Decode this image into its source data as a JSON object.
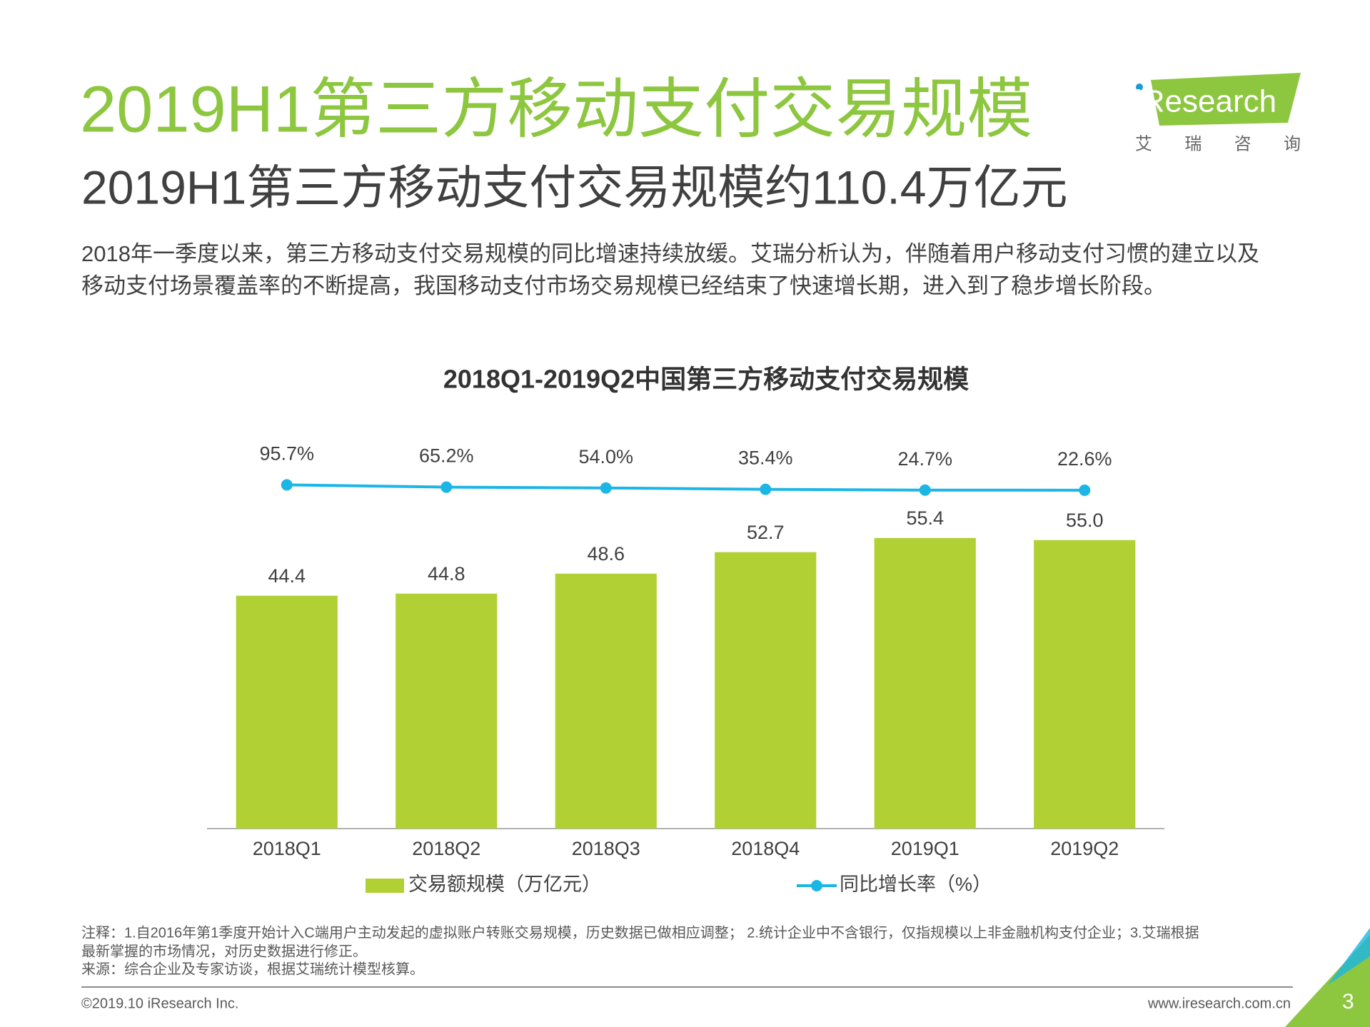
{
  "header": {
    "title": "2019H1第三方移动支付交易规模",
    "subtitle": "2019H1第三方移动支付交易规模约110.4万亿元",
    "logo": "iResearch",
    "logo_cn": "艾 瑞 咨 询"
  },
  "paragraph": [
    "2018年一季度以来，第三方移动支付交易规模的同比增速持续放缓。艾瑞分析认为，伴随着用户移动支付习惯的建立以及",
    "移动支付场景覆盖率的不断提高，我国移动支付市场交易规模已经结束了快速增长期，进入到了稳步增长阶段。"
  ],
  "chart_data": {
    "type": "bar",
    "title": "2018Q1-2019Q2中国第三方移动支付交易规模",
    "categories": [
      "2018Q1",
      "2018Q2",
      "2018Q3",
      "2018Q4",
      "2019Q1",
      "2019Q2"
    ],
    "series": [
      {
        "name": "交易额规模（万亿元）",
        "type": "bar",
        "color": "#b0d034",
        "values": [
          44.4,
          44.8,
          48.6,
          52.7,
          55.4,
          55.0
        ],
        "value_labels": [
          "44.4",
          "44.8",
          "48.6",
          "52.7",
          "55.4",
          "55.0"
        ]
      },
      {
        "name": "同比增长率（%）",
        "type": "line",
        "axis": "y2",
        "color": "#1cb6e6",
        "values": [
          95.7,
          65.2,
          54.0,
          35.4,
          24.7,
          22.6
        ],
        "value_labels": [
          "95.7%",
          "65.2%",
          "54.0%",
          "35.4%",
          "24.7%",
          "22.6%"
        ]
      }
    ],
    "ylim": [
      0,
      60
    ],
    "y2lim": [
      -4600,
      -300
    ]
  },
  "notes": [
    "注释：1.自2016年第1季度开始计入C端用户主动发起的虚拟账户转账交易规模，历史数据已做相应调整； 2.统计企业中不含银行，仅指规模以上非金融机构支付企业；3.艾瑞根据",
    "最新掌握的市场情况，对历史数据进行修正。",
    "来源：综合企业及专家访谈，根据艾瑞统计模型核算。"
  ],
  "footer": {
    "copyright": "©2019.10 iResearch Inc.",
    "url": "www.iresearch.com.cn",
    "page": "3"
  }
}
